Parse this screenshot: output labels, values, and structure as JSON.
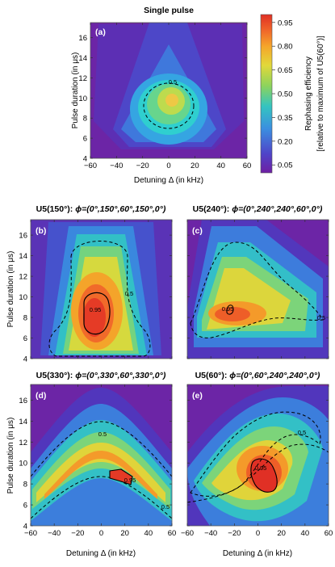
{
  "figure": {
    "panel_a_title": "Single pulse",
    "colorbar": {
      "label_line1": "Rephasing efficiency",
      "label_line2": "[relative to maximum of U5(60°)]",
      "ticks": [
        "0.05",
        "0.20",
        "0.35",
        "0.50",
        "0.65",
        "0.80",
        "0.95"
      ]
    }
  },
  "chart_data": [
    {
      "id": "a",
      "type": "heatmap",
      "panel_letter": "(a)",
      "title": "Single pulse",
      "title_prefix": "",
      "title_phi": "",
      "xlabel": "Detuning Δ (in kHz)",
      "ylabel": "Pulse duration (in μs)",
      "xlim": [
        -60,
        60
      ],
      "ylim": [
        4,
        17.5
      ],
      "xticks": [
        -60,
        -40,
        -20,
        0,
        20,
        40,
        60
      ],
      "yticks": [
        4,
        6,
        8,
        10,
        12,
        14,
        16
      ],
      "peak": {
        "x": 0,
        "y": 9.5,
        "value": 0.62
      },
      "contours": [
        {
          "level": "0.5",
          "style": "dashed",
          "label_at": [
            0,
            12
          ]
        }
      ]
    },
    {
      "id": "b",
      "type": "heatmap",
      "panel_letter": "(b)",
      "title": "",
      "title_prefix": "U5(150°): ",
      "title_phi": "ϕ=(0°,150°,60°,150°,0°)",
      "xlabel": "",
      "ylabel": "Pulse duration (in μs)",
      "xlim": [
        -60,
        60
      ],
      "ylim": [
        4,
        17.5
      ],
      "xticks": [
        -60,
        -40,
        -20,
        0,
        20,
        40,
        60
      ],
      "yticks": [
        4,
        6,
        8,
        10,
        12,
        14,
        16
      ],
      "peak": {
        "x": -2,
        "y": 8,
        "value": 0.97
      },
      "contours": [
        {
          "level": "0.5",
          "style": "dashed",
          "label_at": [
            24,
            9.5
          ]
        },
        {
          "level": "0.95",
          "style": "solid",
          "label_at": [
            -2,
            8.8
          ]
        }
      ]
    },
    {
      "id": "c",
      "type": "heatmap",
      "panel_letter": "(c)",
      "title": "",
      "title_prefix": "U5(240°): ",
      "title_phi": "ϕ=(0°,240°,240°,60°,0°)",
      "xlabel": "",
      "ylabel": "",
      "xlim": [
        -60,
        60
      ],
      "ylim": [
        4,
        17.5
      ],
      "xticks": [
        -60,
        -40,
        -20,
        0,
        20,
        40,
        60
      ],
      "yticks": [
        4,
        6,
        8,
        10,
        12,
        14,
        16
      ],
      "peak": {
        "x": -8,
        "y": 7.8,
        "value": 0.95
      },
      "contours": [
        {
          "level": "0.5",
          "style": "dashed",
          "label_at": [
            50,
            5.8
          ]
        },
        {
          "level": "0.95",
          "style": "solid",
          "label_at": [
            -6,
            8.1
          ]
        }
      ]
    },
    {
      "id": "d",
      "type": "heatmap",
      "panel_letter": "(d)",
      "title": "",
      "title_prefix": "U5(330°): ",
      "title_phi": "ϕ=(0°,330°,60°,330°,0°)",
      "xlabel": "Detuning Δ (in kHz)",
      "ylabel": "Pulse duration (in μs)",
      "xlim": [
        -60,
        60
      ],
      "ylim": [
        4,
        17.5
      ],
      "xticks": [
        -60,
        -40,
        -20,
        0,
        20,
        40,
        60
      ],
      "yticks": [
        4,
        6,
        8,
        10,
        12,
        14,
        16
      ],
      "peak": {
        "x": 20,
        "y": 8.5,
        "value": 0.96
      },
      "contours": [
        {
          "level": "0.5",
          "style": "dashed",
          "label_at": [
            5,
            11.2
          ]
        },
        {
          "level": "0.5",
          "style": "dashed",
          "label_at": [
            56,
            5.5
          ]
        },
        {
          "level": "0.95",
          "style": "solid",
          "label_at": [
            26,
            7.9
          ]
        }
      ]
    },
    {
      "id": "e",
      "type": "heatmap",
      "panel_letter": "(e)",
      "title": "",
      "title_prefix": "U5(60°): ",
      "title_phi": "ϕ=(0°,60°,240°,240°,0°)",
      "xlabel": "Detuning Δ (in kHz)",
      "ylabel": "",
      "xlim": [
        -60,
        60
      ],
      "ylim": [
        4,
        17.5
      ],
      "xticks": [
        -60,
        -40,
        -20,
        0,
        20,
        40,
        60
      ],
      "yticks": [
        4,
        6,
        8,
        10,
        12,
        14,
        16
      ],
      "peak": {
        "x": 8,
        "y": 7.5,
        "value": 1.0
      },
      "contours": [
        {
          "level": "0.5",
          "style": "dashed",
          "label_at": [
            20,
            11.3
          ]
        },
        {
          "level": "0.95",
          "style": "solid",
          "label_at": [
            0,
            8.9
          ]
        }
      ]
    }
  ]
}
